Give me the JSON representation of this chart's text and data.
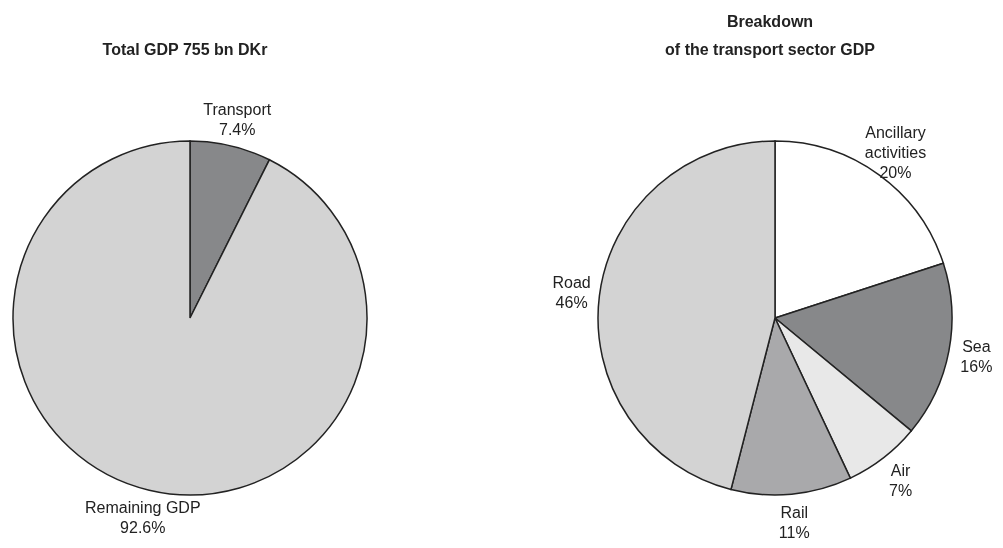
{
  "chart_data": [
    {
      "type": "pie",
      "title": "Total GDP 755 bn DKr",
      "categories": [
        "Transport",
        "Remaining GDP"
      ],
      "values": [
        7.4,
        92.6
      ],
      "value_labels": [
        "7.4%",
        "92.6%"
      ],
      "colors": [
        "#87888a",
        "#d3d3d3"
      ]
    },
    {
      "type": "pie",
      "title": "Breakdown\nof the transport sector GDP",
      "categories": [
        "Ancillary activities",
        "Sea",
        "Air",
        "Rail",
        "Road"
      ],
      "values": [
        20,
        16,
        7,
        11,
        46
      ],
      "value_labels": [
        "20%",
        "16%",
        "7%",
        "11%",
        "46%"
      ],
      "colors": [
        "#ffffff",
        "#87888a",
        "#e8e8e8",
        "#a9a9ab",
        "#d3d3d3"
      ]
    }
  ]
}
